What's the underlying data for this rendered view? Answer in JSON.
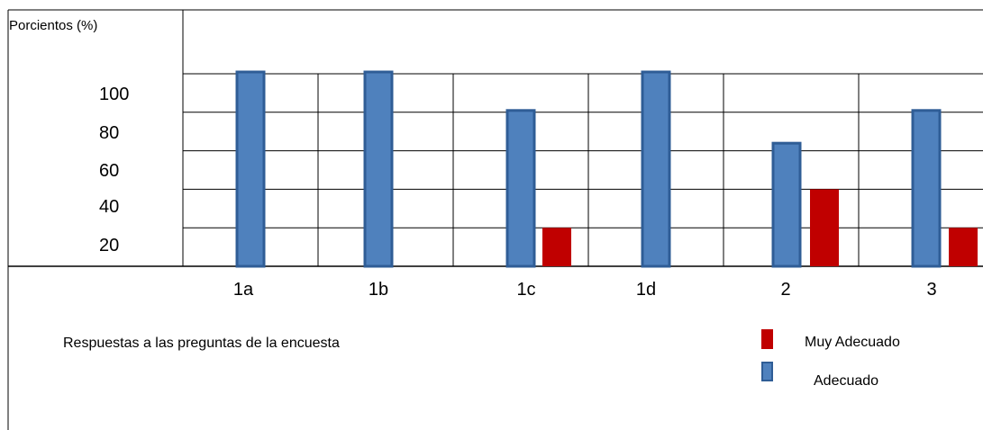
{
  "chart_data": {
    "type": "bar",
    "ylabel": "Porcientos   (%)",
    "xlabel": "Respuestas a las preguntas de la encuesta",
    "categories": [
      "1a",
      "1b",
      "1c",
      "1d",
      "2",
      "3"
    ],
    "yticks": [
      "100",
      "80",
      "60",
      "40",
      "20"
    ],
    "ylim": [
      0,
      100
    ],
    "series": [
      {
        "name": "Adecuado",
        "color": "#4f81bd",
        "values": [
          100,
          100,
          80,
          100,
          63,
          80
        ]
      },
      {
        "name": "Muy Adecuado",
        "color": "#c00000",
        "values": [
          0,
          0,
          20,
          0,
          40,
          20
        ]
      }
    ],
    "legend": [
      {
        "label": "Muy Adecuado",
        "color": "#c00000"
      },
      {
        "label": "Adecuado",
        "color": "#4f81bd"
      }
    ],
    "grid": true
  }
}
